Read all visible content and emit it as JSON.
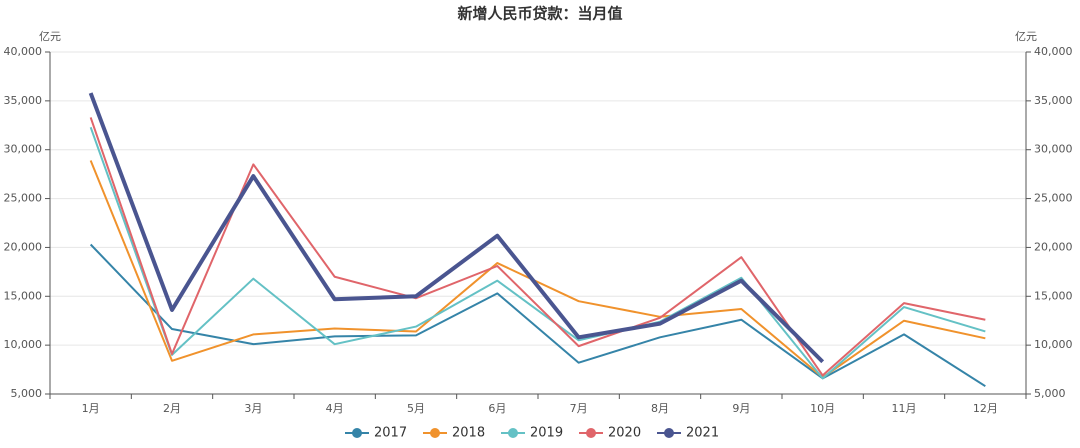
{
  "chart_data": {
    "type": "line",
    "title": "新增人民币贷款：当月值",
    "y_label": "亿元",
    "y2_label": "亿元",
    "categories": [
      "1月",
      "2月",
      "3月",
      "4月",
      "5月",
      "6月",
      "7月",
      "8月",
      "9月",
      "10月",
      "11月",
      "12月"
    ],
    "ylim": [
      5000,
      40000
    ],
    "yticks": [
      {
        "value": 5000,
        "label": "5,000"
      },
      {
        "value": 10000,
        "label": "10,000"
      },
      {
        "value": 15000,
        "label": "15,000"
      },
      {
        "value": 20000,
        "label": "20,000"
      },
      {
        "value": 25000,
        "label": "25,000"
      },
      {
        "value": 30000,
        "label": "30,000"
      },
      {
        "value": 35000,
        "label": "35,000"
      },
      {
        "value": 40000,
        "label": "40,000"
      }
    ],
    "y2lim": [
      5000,
      40000
    ],
    "y2ticks": [
      {
        "value": 5000,
        "label": "5,000"
      },
      {
        "value": 10000,
        "label": "10,000"
      },
      {
        "value": 15000,
        "label": "15,000"
      },
      {
        "value": 20000,
        "label": "20,000"
      },
      {
        "value": 25000,
        "label": "25,000"
      },
      {
        "value": 30000,
        "label": "30,000"
      },
      {
        "value": 35000,
        "label": "35,000"
      },
      {
        "value": 40000,
        "label": "40,000"
      }
    ],
    "grid": true,
    "legend": "bottom",
    "series": [
      {
        "name": "2017",
        "color": "#3584a8",
        "values": [
          20300,
          11650,
          10100,
          10900,
          11000,
          15300,
          8200,
          10800,
          12600,
          6600,
          11100,
          5800
        ]
      },
      {
        "name": "2018",
        "color": "#f0922c",
        "values": [
          28900,
          8400,
          11100,
          11700,
          11400,
          18400,
          14500,
          12900,
          13700,
          6700,
          12500,
          10700
        ]
      },
      {
        "name": "2019",
        "color": "#64c1c5",
        "values": [
          32300,
          9000,
          16800,
          10100,
          11900,
          16600,
          10500,
          12400,
          16900,
          6600,
          13900,
          11400
        ]
      },
      {
        "name": "2020",
        "color": "#e0656a",
        "values": [
          33300,
          9100,
          28500,
          17000,
          14800,
          18100,
          9900,
          12800,
          19000,
          6900,
          14300,
          12600
        ]
      },
      {
        "name": "2021",
        "color": "#4a5590",
        "values": [
          35800,
          13600,
          27300,
          14700,
          15000,
          21200,
          10800,
          12200,
          16600,
          8300,
          null,
          null
        ]
      }
    ]
  }
}
